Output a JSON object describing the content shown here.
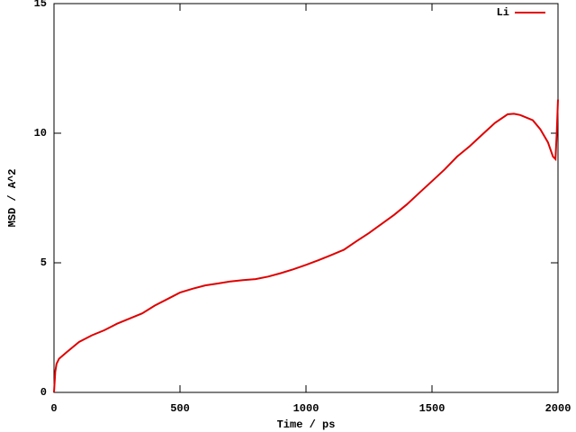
{
  "chart_data": {
    "type": "line",
    "x_label": "Time / ps",
    "y_label": "MSD / A^2",
    "x": [
      0,
      5,
      10,
      20,
      50,
      100,
      150,
      200,
      250,
      300,
      350,
      400,
      450,
      500,
      550,
      600,
      650,
      700,
      750,
      800,
      850,
      900,
      950,
      1000,
      1050,
      1100,
      1150,
      1200,
      1250,
      1300,
      1350,
      1400,
      1450,
      1500,
      1550,
      1600,
      1650,
      1700,
      1750,
      1800,
      1825,
      1850,
      1900,
      1930,
      1960,
      1980,
      1990,
      1995,
      2000
    ],
    "series": [
      {
        "name": "Li",
        "color": "#e00000",
        "values": [
          0.0,
          0.8,
          1.1,
          1.3,
          1.55,
          1.95,
          2.2,
          2.4,
          2.65,
          2.85,
          3.05,
          3.35,
          3.6,
          3.85,
          4.0,
          4.13,
          4.2,
          4.28,
          4.33,
          4.37,
          4.47,
          4.6,
          4.75,
          4.92,
          5.1,
          5.3,
          5.5,
          5.83,
          6.15,
          6.5,
          6.85,
          7.25,
          7.7,
          8.15,
          8.6,
          9.1,
          9.5,
          9.95,
          10.4,
          10.73,
          10.75,
          10.7,
          10.5,
          10.15,
          9.65,
          9.1,
          9.0,
          10.0,
          11.3
        ]
      }
    ],
    "xlim": [
      0,
      2000
    ],
    "ylim": [
      0,
      15
    ],
    "xticks": [
      0,
      500,
      1000,
      1500,
      2000
    ],
    "yticks": [
      0,
      5,
      10,
      15
    ],
    "legend": "upper right"
  }
}
